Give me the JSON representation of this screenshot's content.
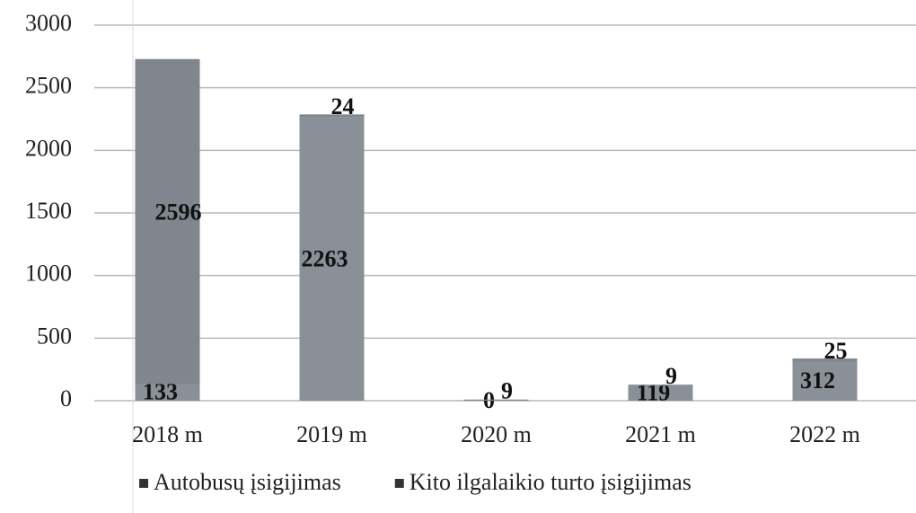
{
  "chart_data": {
    "type": "bar",
    "stacked": true,
    "categories": [
      "2018 m",
      "2019 m",
      "2020 m",
      "2021 m",
      "2022 m"
    ],
    "series": [
      {
        "name": "Autobusų įsigijimas",
        "color": "#8a9098",
        "values": [
          133,
          2263,
          0,
          119,
          312
        ]
      },
      {
        "name": "Kito ilgalaikio turto įsigijimas",
        "color": "#80868e",
        "values": [
          2596,
          24,
          9,
          9,
          25
        ]
      }
    ],
    "ylim": [
      0,
      3000
    ],
    "yticks": [
      0,
      500,
      1000,
      1500,
      2000,
      2500,
      3000
    ],
    "grid": true,
    "legend": "bottom"
  }
}
